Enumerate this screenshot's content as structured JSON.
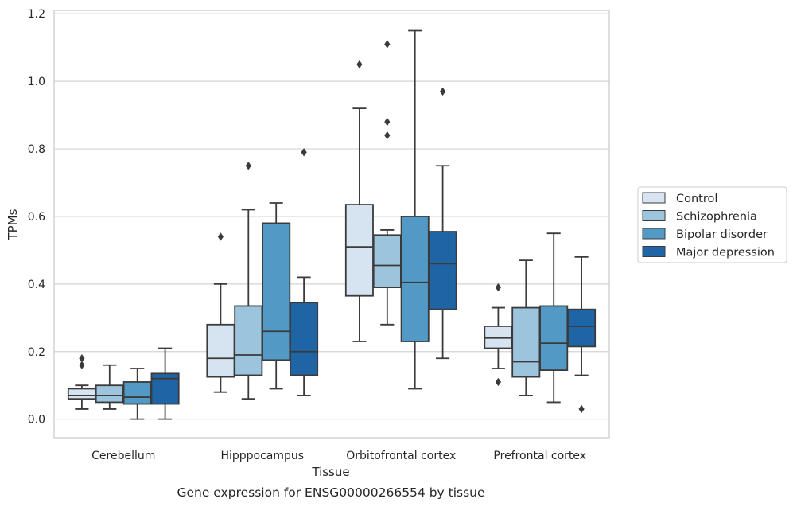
{
  "chart_data": {
    "type": "box",
    "title": "",
    "caption": "Gene expression for ENSG00000266554 by tissue",
    "xlabel": "Tissue",
    "ylabel": "TPMs",
    "ylim": [
      -0.055,
      1.21
    ],
    "yticks": [
      0.0,
      0.2,
      0.4,
      0.6,
      0.8,
      1.0,
      1.2
    ],
    "ytick_labels": [
      "0.0",
      "0.2",
      "0.4",
      "0.6",
      "0.8",
      "1.0",
      "1.2"
    ],
    "grid": "horizontal",
    "legend_position": "right",
    "categories": [
      "Cerebellum",
      "Hipppocampus",
      "Orbitofrontal cortex",
      "Prefrontal cortex"
    ],
    "series": [
      {
        "name": "Control",
        "color": "#d6e4f2",
        "boxes": [
          {
            "whislo": 0.03,
            "q1": 0.06,
            "median": 0.07,
            "q3": 0.09,
            "whishi": 0.1,
            "fliers": [
              0.16,
              0.18
            ]
          },
          {
            "whislo": 0.08,
            "q1": 0.125,
            "median": 0.18,
            "q3": 0.28,
            "whishi": 0.4,
            "fliers": [
              0.54
            ]
          },
          {
            "whislo": 0.23,
            "q1": 0.365,
            "median": 0.51,
            "q3": 0.635,
            "whishi": 0.92,
            "fliers": [
              1.05
            ]
          },
          {
            "whislo": 0.15,
            "q1": 0.21,
            "median": 0.24,
            "q3": 0.275,
            "whishi": 0.33,
            "fliers": [
              0.39,
              0.11
            ]
          }
        ]
      },
      {
        "name": "Schizophrenia",
        "color": "#9cc4dd",
        "boxes": [
          {
            "whislo": 0.03,
            "q1": 0.05,
            "median": 0.07,
            "q3": 0.1,
            "whishi": 0.16,
            "fliers": []
          },
          {
            "whislo": 0.06,
            "q1": 0.13,
            "median": 0.19,
            "q3": 0.335,
            "whishi": 0.62,
            "fliers": [
              0.75
            ]
          },
          {
            "whislo": 0.28,
            "q1": 0.39,
            "median": 0.455,
            "q3": 0.545,
            "whishi": 0.56,
            "fliers": [
              1.11,
              0.88,
              0.84
            ]
          },
          {
            "whislo": 0.07,
            "q1": 0.125,
            "median": 0.17,
            "q3": 0.33,
            "whishi": 0.47,
            "fliers": []
          }
        ]
      },
      {
        "name": "Bipolar disorder",
        "color": "#5399c6",
        "boxes": [
          {
            "whislo": 0.0,
            "q1": 0.045,
            "median": 0.065,
            "q3": 0.11,
            "whishi": 0.15,
            "fliers": []
          },
          {
            "whislo": 0.09,
            "q1": 0.175,
            "median": 0.26,
            "q3": 0.58,
            "whishi": 0.64,
            "fliers": []
          },
          {
            "whislo": 0.09,
            "q1": 0.23,
            "median": 0.405,
            "q3": 0.6,
            "whishi": 1.15,
            "fliers": []
          },
          {
            "whislo": 0.05,
            "q1": 0.145,
            "median": 0.225,
            "q3": 0.335,
            "whishi": 0.55,
            "fliers": []
          }
        ]
      },
      {
        "name": "Major depression",
        "color": "#1f65a6",
        "boxes": [
          {
            "whislo": 0.0,
            "q1": 0.045,
            "median": 0.12,
            "q3": 0.135,
            "whishi": 0.21,
            "fliers": []
          },
          {
            "whislo": 0.07,
            "q1": 0.13,
            "median": 0.2,
            "q3": 0.345,
            "whishi": 0.42,
            "fliers": [
              0.79
            ]
          },
          {
            "whislo": 0.18,
            "q1": 0.325,
            "median": 0.46,
            "q3": 0.555,
            "whishi": 0.75,
            "fliers": [
              0.97
            ]
          },
          {
            "whislo": 0.13,
            "q1": 0.215,
            "median": 0.275,
            "q3": 0.325,
            "whishi": 0.48,
            "fliers": [
              0.03
            ]
          }
        ]
      }
    ],
    "style": {
      "grid_color": "#d3d3d3",
      "frame_color": "#cccccc",
      "line_color": "#3b3b3b",
      "text_color": "#262626"
    }
  }
}
